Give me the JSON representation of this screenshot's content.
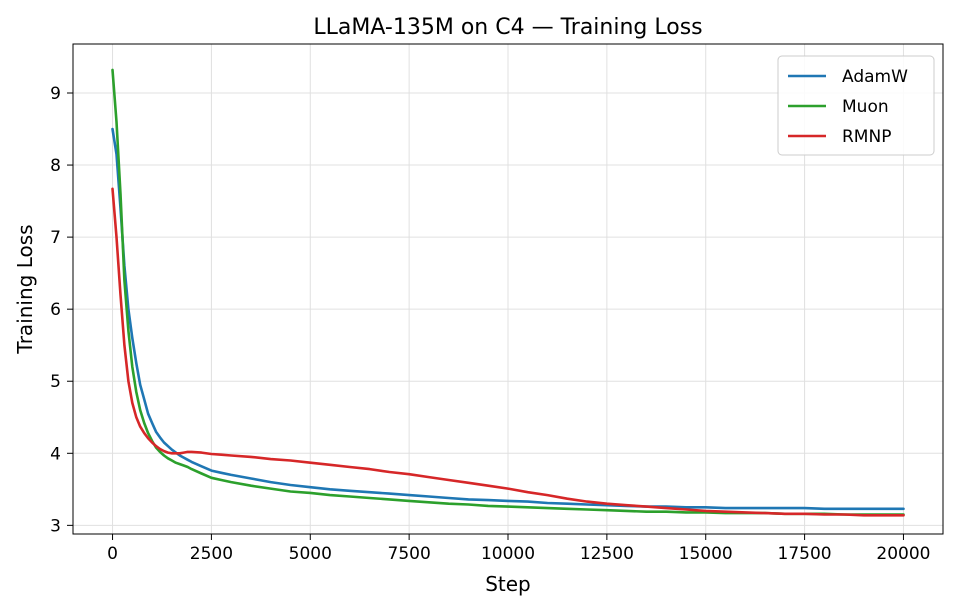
{
  "chart_data": {
    "type": "line",
    "title": "LLaMA-135M on C4 — Training Loss",
    "xlabel": "Step",
    "ylabel": "Training Loss",
    "xlim": [
      -1000,
      21000
    ],
    "ylim": [
      2.88,
      9.68
    ],
    "xticks": [
      0,
      2500,
      5000,
      7500,
      10000,
      12500,
      15000,
      17500,
      20000
    ],
    "yticks": [
      3,
      4,
      5,
      6,
      7,
      8,
      9
    ],
    "grid": true,
    "legend_position": "top-right",
    "series": [
      {
        "name": "AdamW",
        "color": "#1f77b4",
        "x": [
          0,
          100,
          200,
          300,
          400,
          500,
          600,
          700,
          800,
          900,
          1000,
          1100,
          1200,
          1300,
          1400,
          1500,
          1600,
          1700,
          1800,
          1900,
          2000,
          2250,
          2500,
          2750,
          3000,
          3500,
          4000,
          4500,
          5000,
          5500,
          6000,
          6500,
          7000,
          7500,
          8000,
          8500,
          9000,
          9500,
          10000,
          10500,
          11000,
          11500,
          12000,
          12500,
          13000,
          13500,
          14000,
          14500,
          15000,
          15500,
          16000,
          16500,
          17000,
          17500,
          18000,
          18500,
          19000,
          19500,
          20000
        ],
        "y": [
          8.5,
          8.15,
          7.4,
          6.6,
          6.0,
          5.6,
          5.25,
          4.95,
          4.75,
          4.55,
          4.42,
          4.3,
          4.22,
          4.15,
          4.1,
          4.05,
          4.01,
          3.97,
          3.94,
          3.91,
          3.88,
          3.82,
          3.76,
          3.73,
          3.7,
          3.65,
          3.6,
          3.56,
          3.53,
          3.5,
          3.48,
          3.46,
          3.44,
          3.42,
          3.4,
          3.38,
          3.36,
          3.35,
          3.34,
          3.33,
          3.31,
          3.3,
          3.29,
          3.28,
          3.27,
          3.26,
          3.26,
          3.25,
          3.25,
          3.24,
          3.24,
          3.24,
          3.24,
          3.24,
          3.23,
          3.23,
          3.23,
          3.23,
          3.23
        ]
      },
      {
        "name": "Muon",
        "color": "#2ca02c",
        "x": [
          0,
          100,
          200,
          300,
          400,
          500,
          600,
          700,
          800,
          900,
          1000,
          1100,
          1200,
          1300,
          1400,
          1500,
          1600,
          1700,
          1800,
          1900,
          2000,
          2250,
          2500,
          2750,
          3000,
          3500,
          4000,
          4500,
          5000,
          5500,
          6000,
          6500,
          7000,
          7500,
          8000,
          8500,
          9000,
          9500,
          10000,
          10500,
          11000,
          11500,
          12000,
          12500,
          13000,
          13500,
          14000,
          14500,
          15000,
          15500,
          16000,
          16500,
          17000,
          17500,
          18000,
          18500,
          19000,
          19500,
          20000
        ],
        "y": [
          9.32,
          8.6,
          7.6,
          6.4,
          5.7,
          5.2,
          4.85,
          4.6,
          4.42,
          4.28,
          4.17,
          4.08,
          4.02,
          3.97,
          3.93,
          3.9,
          3.87,
          3.85,
          3.83,
          3.81,
          3.78,
          3.72,
          3.66,
          3.63,
          3.6,
          3.55,
          3.51,
          3.47,
          3.45,
          3.42,
          3.4,
          3.38,
          3.36,
          3.34,
          3.32,
          3.3,
          3.29,
          3.27,
          3.26,
          3.25,
          3.24,
          3.23,
          3.22,
          3.21,
          3.2,
          3.19,
          3.19,
          3.18,
          3.18,
          3.17,
          3.17,
          3.17,
          3.16,
          3.16,
          3.16,
          3.15,
          3.15,
          3.15,
          3.15
        ]
      },
      {
        "name": "RMNP",
        "color": "#d62728",
        "x": [
          0,
          100,
          200,
          300,
          400,
          500,
          600,
          700,
          800,
          900,
          1000,
          1100,
          1200,
          1300,
          1400,
          1500,
          1600,
          1700,
          1800,
          1900,
          2000,
          2250,
          2500,
          2750,
          3000,
          3500,
          4000,
          4500,
          5000,
          5500,
          6000,
          6500,
          7000,
          7500,
          8000,
          8500,
          9000,
          9500,
          10000,
          10500,
          11000,
          11500,
          12000,
          12500,
          13000,
          13500,
          14000,
          14500,
          15000,
          15500,
          16000,
          16500,
          17000,
          17500,
          18000,
          18500,
          19000,
          19500,
          20000
        ],
        "y": [
          7.67,
          7.0,
          6.2,
          5.5,
          5.0,
          4.7,
          4.5,
          4.37,
          4.28,
          4.21,
          4.15,
          4.1,
          4.06,
          4.03,
          4.01,
          4.0,
          4.0,
          4.0,
          4.01,
          4.02,
          4.02,
          4.01,
          3.99,
          3.98,
          3.97,
          3.95,
          3.92,
          3.9,
          3.87,
          3.84,
          3.81,
          3.78,
          3.74,
          3.71,
          3.67,
          3.63,
          3.59,
          3.55,
          3.51,
          3.46,
          3.42,
          3.37,
          3.33,
          3.3,
          3.28,
          3.26,
          3.24,
          3.22,
          3.2,
          3.19,
          3.18,
          3.17,
          3.16,
          3.16,
          3.15,
          3.15,
          3.14,
          3.14,
          3.14
        ]
      }
    ]
  }
}
